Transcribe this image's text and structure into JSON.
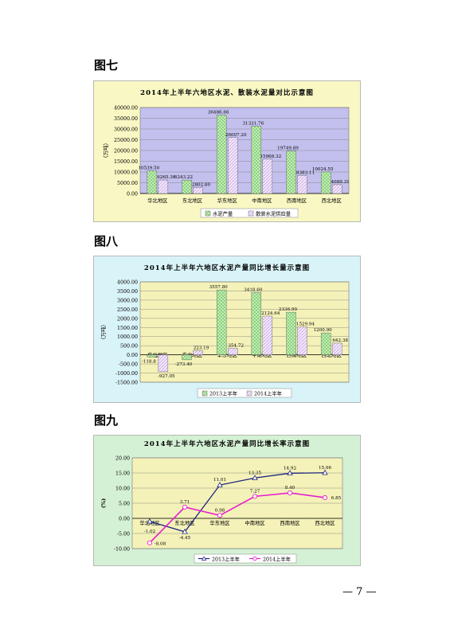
{
  "figures": [
    {
      "label": "图七"
    },
    {
      "label": "图八"
    },
    {
      "label": "图九"
    }
  ],
  "page_number": "— 7 —",
  "chart_data": [
    {
      "type": "bar",
      "title": "2014年上半年六地区水泥、散装水泥量对比示意图",
      "ylabel": "（万吨）",
      "ylim": [
        0,
        40000
      ],
      "yticks": [
        "0.00",
        "5000.00",
        "10000.00",
        "15000.00",
        "20000.00",
        "25000.00",
        "30000.00",
        "35000.00",
        "40000.00"
      ],
      "categories": [
        "华北地区",
        "东北地区",
        "华东地区",
        "中南地区",
        "西南地区",
        "西北地区"
      ],
      "series": [
        {
          "name": "水泥产量",
          "values": [
            10539.5,
            6243.22,
            36486.66,
            31331.76,
            19749.89,
            10024.55
          ],
          "labels": [
            "10539.50",
            "6243.22",
            "36486.66",
            "31331.76",
            "19749.89",
            "10024.55"
          ]
        },
        {
          "name": "散装水泥供应量",
          "values": [
            6265.36,
            2802.8,
            26007.2,
            15968.32,
            8383.11,
            4089.31
          ],
          "labels": [
            "6265.36",
            "2802.80",
            "26007.20",
            "15968.32",
            "8383.11",
            "4089.31"
          ]
        }
      ],
      "colors": {
        "bg": "#f9f8c4",
        "plot": "#c3c0ee",
        "s1": "#7fcf6f",
        "s2": "#c9a8e8"
      }
    },
    {
      "type": "bar",
      "title": "2014年上半年六地区水泥产量同比增长量示意图",
      "ylabel": "（万吨）",
      "ylim": [
        -1500,
        4000
      ],
      "yticks": [
        "-1500.00",
        "-1000.00",
        "-500.00",
        "0.00",
        "500.00",
        "1000.00",
        "1500.00",
        "2000.00",
        "2500.00",
        "3000.00",
        "3500.00",
        "4000.00"
      ],
      "categories": [
        "华北地区",
        "东北地区",
        "华东地区",
        "中南地区",
        "西南地区",
        "西北地区"
      ],
      "series": [
        {
          "name": "2013上半年",
          "values": [
            -118.8,
            -273.4,
            3557.8,
            3418.6,
            2336.9,
            1200.9
          ],
          "labels": [
            "-118.8",
            "-273.40",
            "3557.80",
            "3418.60",
            "2336.90",
            "1200.90"
          ]
        },
        {
          "name": "2014上半年",
          "values": [
            -927.05,
            223.19,
            354.72,
            2124.64,
            1529.94,
            642.38
          ],
          "labels": [
            "-927.05",
            "223.19",
            "354.72",
            "2124.64",
            "1529.94",
            "642.38"
          ]
        }
      ],
      "colors": {
        "bg": "#d9f4f8",
        "plot": "#f4f2b8",
        "s1": "#7fcf6f",
        "s2": "#c9a8e8"
      }
    },
    {
      "type": "line",
      "title": "2014年上半年六地区水泥产量同比增长率示意图",
      "ylabel": "(%)",
      "ylim": [
        -10,
        20
      ],
      "yticks": [
        "-10.00",
        "-5.00",
        "0.00",
        "5.00",
        "10.00",
        "15.00",
        "20.00"
      ],
      "categories": [
        "华北地区",
        "东北地区",
        "华东地区",
        "中南地区",
        "西南地区",
        "西北地区"
      ],
      "series": [
        {
          "name": "2013上半年",
          "values": [
            -1.02,
            -4.45,
            11.01,
            13.35,
            14.92,
            15.06
          ],
          "labels": [
            "-1.02",
            "-4.45",
            "11.01",
            "13.35",
            "14.92",
            "15.06"
          ]
        },
        {
          "name": "2014上半年",
          "values": [
            -8.08,
            3.71,
            0.98,
            7.27,
            8.4,
            6.85
          ],
          "labels": [
            "-8.08",
            "3.71",
            "0.98",
            "7.27",
            "8.40",
            "6.85"
          ]
        }
      ],
      "colors": {
        "bg": "#d5f1d5",
        "plot": "#f4f2b8",
        "s1": "#1c2280",
        "s2": "#e81ecf"
      }
    }
  ]
}
